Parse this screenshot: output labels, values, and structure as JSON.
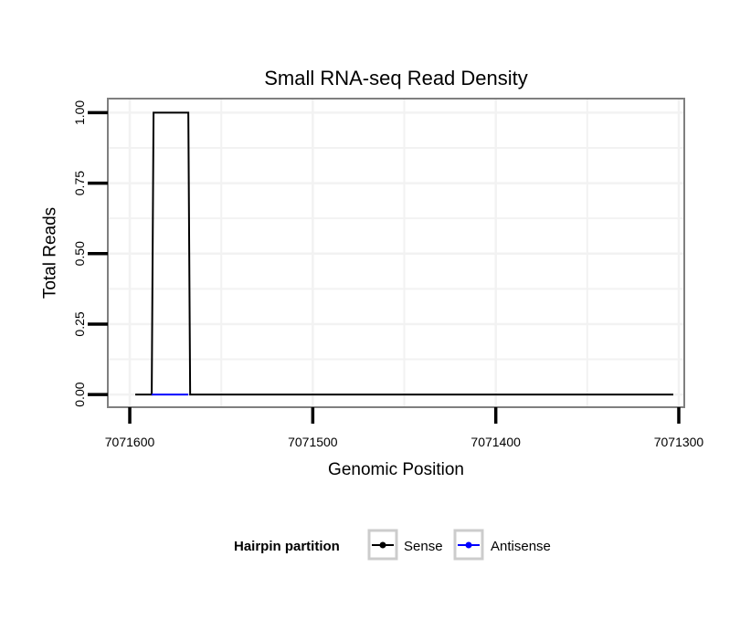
{
  "chart_data": {
    "type": "line",
    "title": "Small RNA-seq Read Density",
    "xlabel": "Genomic Position",
    "ylabel": "Total Reads",
    "x_reversed": true,
    "xlim": [
      7071612,
      7071297
    ],
    "ylim": [
      -0.045,
      1.05
    ],
    "x_ticks": [
      7071600,
      7071500,
      7071400,
      7071300
    ],
    "x_tick_labels": [
      "7071600",
      "7071500",
      "7071400",
      "7071300"
    ],
    "y_ticks": [
      0,
      0.25,
      0.5,
      0.75,
      1.0
    ],
    "y_tick_labels": [
      "0.00",
      "0.25",
      "0.50",
      "0.75",
      "1.00"
    ],
    "grid": true,
    "legend": {
      "title": "Hairpin partition",
      "position": "bottom"
    },
    "series": [
      {
        "name": "Sense",
        "color": "#000000",
        "x": [
          7071597,
          7071588,
          7071587,
          7071568,
          7071567,
          7071303
        ],
        "y": [
          0,
          0,
          1,
          1,
          0,
          0
        ]
      },
      {
        "name": "Antisense",
        "color": "#0000ff",
        "x": [
          7071588,
          7071568
        ],
        "y": [
          0,
          0
        ]
      }
    ]
  }
}
